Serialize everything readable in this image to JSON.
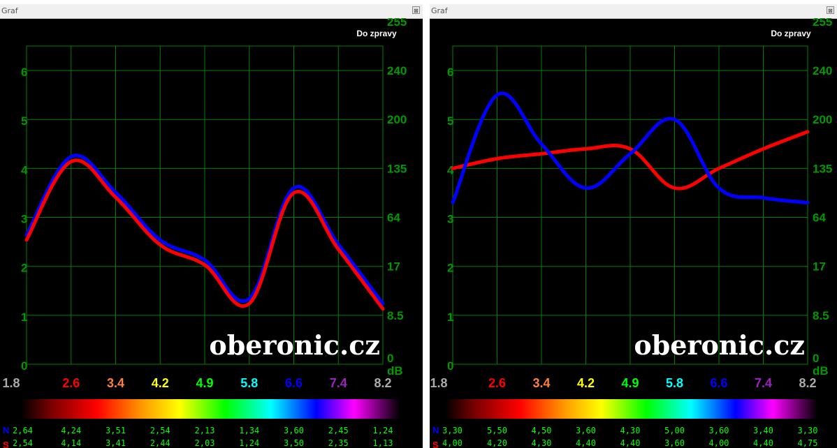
{
  "colors": {
    "window_bg": "#000000",
    "grid": "#008000",
    "axis_label": "#009900",
    "series_N": "#0000ff",
    "series_S": "#ff0000",
    "label_text": "#ffffff",
    "row_values": "#00ff00"
  },
  "icons": {
    "close": "close-icon"
  },
  "chart_data": [
    {
      "type": "line",
      "window_title": "Graf",
      "report_button": "Do zpravy",
      "watermark": "oberonic.cz",
      "x": [
        "1.8",
        "2.6",
        "3.4",
        "4.2",
        "4.9",
        "5.8",
        "6.6",
        "7.4",
        "8.2"
      ],
      "x_label_colors": [
        "#aaaaaa",
        "#ff0000",
        "#ff8040",
        "#ffff00",
        "#00ff00",
        "#00ffff",
        "#0000ff",
        "#a020c0",
        "#aaaaaa"
      ],
      "y_left_ticks": [
        "0",
        "1",
        "2",
        "3",
        "4",
        "5",
        "6"
      ],
      "y_left_range": [
        0,
        6.5
      ],
      "y_right_ticks": [
        "0",
        "8.5",
        "17",
        "64",
        "135",
        "200",
        "240",
        "255"
      ],
      "y_right_unit": "dB",
      "grid": true,
      "series": [
        {
          "name": "N",
          "values": [
            2.64,
            4.24,
            3.51,
            2.54,
            2.13,
            1.34,
            3.6,
            2.45,
            1.24
          ],
          "labels": [
            "2,64",
            "4,24",
            "3,51",
            "2,54",
            "2,13",
            "1,34",
            "3,60",
            "2,45",
            "1,24"
          ]
        },
        {
          "name": "S",
          "values": [
            2.54,
            4.14,
            3.41,
            2.44,
            2.03,
            1.24,
            3.5,
            2.35,
            1.13
          ],
          "labels": [
            "2,54",
            "4,14",
            "3,41",
            "2,44",
            "2,03",
            "1,24",
            "3,50",
            "2,35",
            "1,13"
          ]
        }
      ]
    },
    {
      "type": "line",
      "window_title": "Graf",
      "report_button": "Do zpravy",
      "watermark": "oberonic.cz",
      "x": [
        "1.8",
        "2.6",
        "3.4",
        "4.2",
        "4.9",
        "5.8",
        "6.6",
        "7.4",
        "8.2"
      ],
      "x_label_colors": [
        "#aaaaaa",
        "#ff0000",
        "#ff8040",
        "#ffff00",
        "#00ff00",
        "#00ffff",
        "#0000ff",
        "#a020c0",
        "#aaaaaa"
      ],
      "y_left_ticks": [
        "0",
        "1",
        "2",
        "3",
        "4",
        "5",
        "6"
      ],
      "y_left_range": [
        0,
        6.5
      ],
      "y_right_ticks": [
        "0",
        "8.5",
        "17",
        "64",
        "135",
        "200",
        "240",
        "255"
      ],
      "y_right_unit": "dB",
      "grid": true,
      "series": [
        {
          "name": "N",
          "values": [
            3.3,
            5.5,
            4.5,
            3.6,
            4.3,
            5.0,
            3.6,
            3.4,
            3.3
          ],
          "labels": [
            "3,30",
            "5,50",
            "4,50",
            "3,60",
            "4,30",
            "5,00",
            "3,60",
            "3,40",
            "3,30"
          ]
        },
        {
          "name": "S",
          "values": [
            4.0,
            4.2,
            4.3,
            4.4,
            4.4,
            3.6,
            4.0,
            4.4,
            4.75
          ],
          "labels": [
            "4,00",
            "4,20",
            "4,30",
            "4,40",
            "4,40",
            "3,60",
            "4,00",
            "4,40",
            "4,75"
          ]
        }
      ]
    }
  ]
}
